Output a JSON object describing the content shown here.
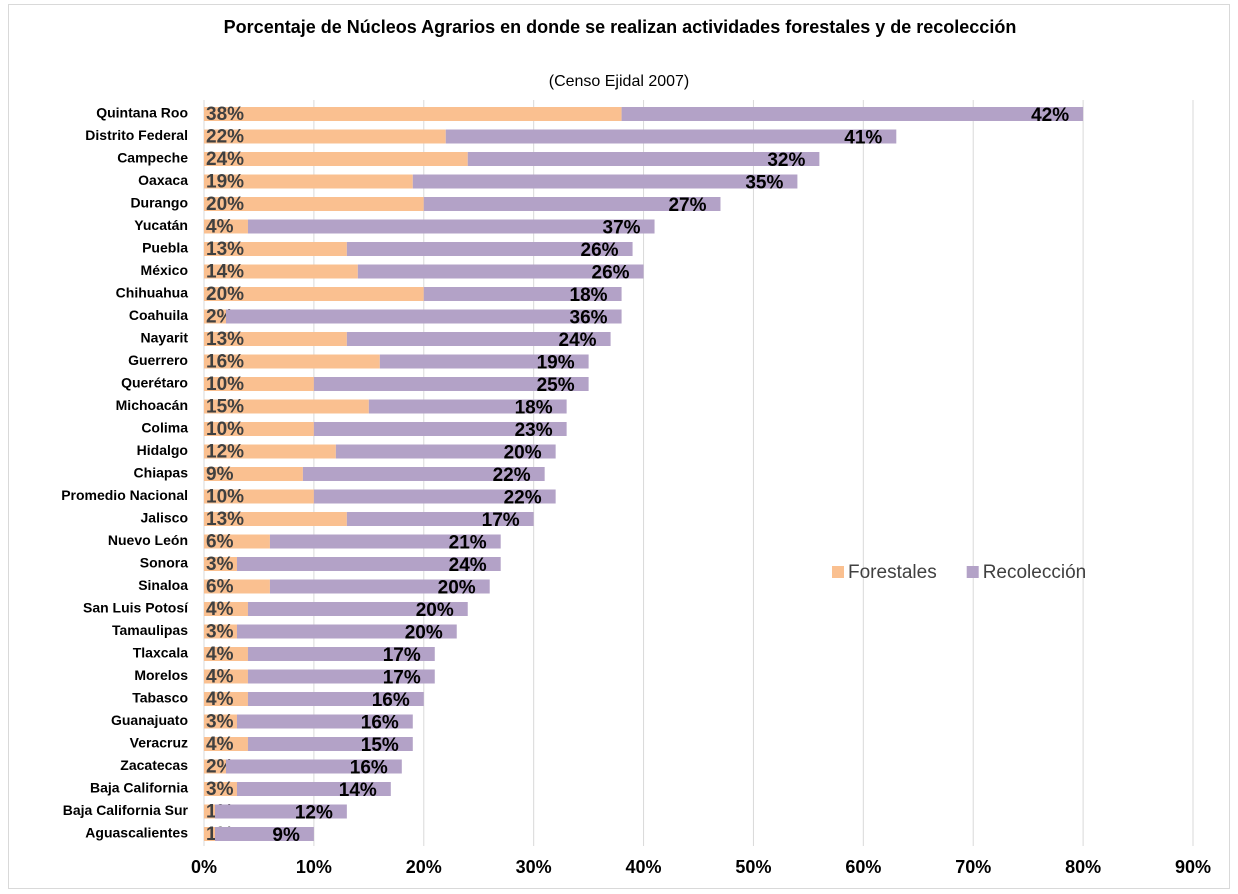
{
  "chart_data": {
    "type": "stacked_bar_horizontal",
    "title": "Porcentaje de Núcleos Agrarios en donde se realizan actividades forestales y de recolección",
    "subtitle": "(Censo Ejidal 2007)",
    "categories": [
      "Quintana Roo",
      "Distrito Federal",
      "Campeche",
      "Oaxaca",
      "Durango",
      "Yucatán",
      "Puebla",
      "México",
      "Chihuahua",
      "Coahuila",
      "Nayarit",
      "Guerrero",
      "Querétaro",
      "Michoacán",
      "Colima",
      "Hidalgo",
      "Chiapas",
      "Promedio Nacional",
      "Jalisco",
      "Nuevo León",
      "Sonora",
      "Sinaloa",
      "San Luis Potosí",
      "Tamaulipas",
      "Tlaxcala",
      "Morelos",
      "Tabasco",
      "Guanajuato",
      "Veracruz",
      "Zacatecas",
      "Baja California",
      "Baja California Sur",
      "Aguascalientes"
    ],
    "series": [
      {
        "name": "Forestales",
        "color": "#fac090",
        "values": [
          38,
          22,
          24,
          19,
          20,
          4,
          13,
          14,
          20,
          2,
          13,
          16,
          10,
          15,
          10,
          12,
          9,
          10,
          13,
          6,
          3,
          6,
          4,
          3,
          4,
          4,
          4,
          3,
          4,
          2,
          3,
          1,
          1
        ],
        "value_labels": [
          "38%",
          "22%",
          "24%",
          "19%",
          "20%",
          "4%",
          "13%",
          "14%",
          "20%",
          "2%",
          "13%",
          "16%",
          "10%",
          "15%",
          "10%",
          "12%",
          "9%",
          "10%",
          "13%",
          "6%",
          "3%",
          "6%",
          "4%",
          "3%",
          "4%",
          "4%",
          "4%",
          "3%",
          "4%",
          "2%",
          "3%",
          "1%",
          "1%"
        ]
      },
      {
        "name": "Recolección",
        "color": "#b3a2c7",
        "values": [
          42,
          41,
          32,
          35,
          27,
          37,
          26,
          26,
          18,
          36,
          24,
          19,
          25,
          18,
          23,
          20,
          22,
          22,
          17,
          21,
          24,
          20,
          20,
          20,
          17,
          17,
          16,
          16,
          15,
          16,
          14,
          12,
          9
        ],
        "value_labels": [
          "42%",
          "41%",
          "32%",
          "35%",
          "27%",
          "37%",
          "26%",
          "26%",
          "18%",
          "36%",
          "24%",
          "19%",
          "25%",
          "18%",
          "23%",
          "20%",
          "22%",
          "22%",
          "17%",
          "21%",
          "24%",
          "20%",
          "20%",
          "20%",
          "17%",
          "17%",
          "16%",
          "16%",
          "15%",
          "16%",
          "14%",
          "12%",
          "9%"
        ]
      }
    ],
    "xlim": [
      0,
      90
    ],
    "xticks": [
      {
        "value": 0,
        "label": "0%"
      },
      {
        "value": 10,
        "label": "10%"
      },
      {
        "value": 20,
        "label": "20%"
      },
      {
        "value": 30,
        "label": "30%"
      },
      {
        "value": 40,
        "label": "40%"
      },
      {
        "value": 50,
        "label": "50%"
      },
      {
        "value": 60,
        "label": "60%"
      },
      {
        "value": 70,
        "label": "70%"
      },
      {
        "value": 80,
        "label": "80%"
      },
      {
        "value": 90,
        "label": "90%"
      }
    ],
    "grid": true,
    "legend": "right"
  }
}
